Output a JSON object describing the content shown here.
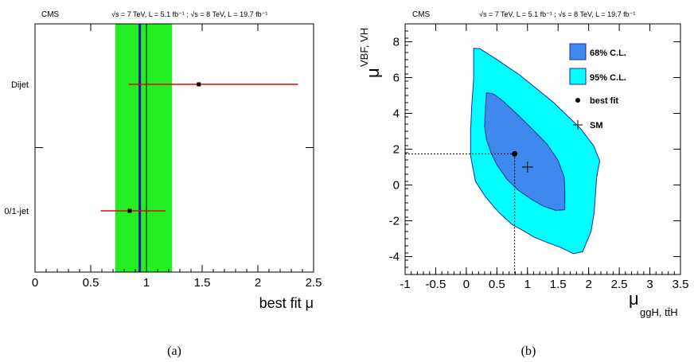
{
  "panel_a": {
    "header_left": "CMS",
    "header_right": "√s = 7 TeV, L = 5.1 fb⁻¹ ; √s = 8 TeV, L = 19.7 fb⁻¹",
    "caption": "(a)"
  },
  "panel_b": {
    "header_left": "CMS",
    "header_right": "√s = 7 TeV, L = 5.1 fb⁻¹ ; √s = 8 TeV, L = 19.7 fb⁻¹",
    "caption": "(b)"
  },
  "colors": {
    "band_green": "#22ee22",
    "combined_line": "#1a1a9e",
    "error_bar": "#ee0000",
    "cl68_fill": "#3f88ee",
    "cl95_fill": "#00ffff",
    "contour_line": "#1a2aa8"
  },
  "chart_data": [
    {
      "type": "scatter",
      "title": "",
      "xlabel": "best fit μ",
      "ylabel": "",
      "xlim": [
        0,
        2.5
      ],
      "x_ticks": [
        0,
        0.5,
        1,
        1.5,
        2,
        2.5
      ],
      "x_tick_labels": [
        "0",
        "0.5",
        "1",
        "1.5",
        "2",
        "2.5"
      ],
      "grid": false,
      "categories": [
        "Dijet",
        "0/1-jet"
      ],
      "points": [
        {
          "label": "Dijet",
          "best_fit": 1.47,
          "low": 0.84,
          "high": 2.36
        },
        {
          "label": "0/1-jet",
          "best_fit": 0.85,
          "low": 0.59,
          "high": 1.17
        }
      ],
      "combined": {
        "best_fit": 0.94,
        "low": 0.72,
        "high": 1.23
      },
      "sm_value": 1
    },
    {
      "type": "scatter",
      "title": "",
      "xlabel": "μ",
      "xlabel_sub": "ggH, tt̄H",
      "ylabel": "μ",
      "ylabel_sub": "VBF, VH",
      "xlim": [
        -1,
        3.5
      ],
      "ylim": [
        -5,
        9
      ],
      "x_ticks": [
        -1,
        -0.5,
        0,
        0.5,
        1,
        1.5,
        2,
        2.5,
        3,
        3.5
      ],
      "x_tick_labels": [
        "-1",
        "-0.5",
        "0",
        "0.5",
        "1",
        "1.5",
        "2",
        "2.5",
        "3",
        "3.5"
      ],
      "y_ticks": [
        -4,
        -2,
        0,
        2,
        4,
        6,
        8
      ],
      "y_tick_labels": [
        "-4",
        "-2",
        "0",
        "2",
        "4",
        "6",
        "8"
      ],
      "grid": false,
      "legend_position": "top-right",
      "legend": [
        "68% C.L.",
        "95% C.L.",
        "best fit",
        "SM"
      ],
      "best_fit": {
        "x": 0.79,
        "y": 1.74
      },
      "sm": {
        "x": 1,
        "y": 1
      },
      "contour_95": [
        [
          0.12,
          7.63
        ],
        [
          0.22,
          7.62
        ],
        [
          0.45,
          7.12
        ],
        [
          0.87,
          6.15
        ],
        [
          1.43,
          4.6
        ],
        [
          1.86,
          3.18
        ],
        [
          2.08,
          2.2
        ],
        [
          2.18,
          1.35
        ],
        [
          2.13,
          0.44
        ],
        [
          2.11,
          -0.53
        ],
        [
          2.09,
          -1.53
        ],
        [
          2.04,
          -2.59
        ],
        [
          1.9,
          -3.73
        ],
        [
          1.75,
          -3.84
        ],
        [
          1.55,
          -3.5
        ],
        [
          1.29,
          -3.17
        ],
        [
          1.1,
          -2.9
        ],
        [
          0.94,
          -2.57
        ],
        [
          0.75,
          -2.22
        ],
        [
          0.53,
          -1.53
        ],
        [
          0.32,
          -0.69
        ],
        [
          0.15,
          0.2
        ],
        [
          0.07,
          1.63
        ],
        [
          0.07,
          3.05
        ],
        [
          0.09,
          4.46
        ],
        [
          0.12,
          5.89
        ],
        [
          0.12,
          7.63
        ]
      ],
      "contour_68": [
        [
          0.33,
          5.15
        ],
        [
          0.44,
          5.09
        ],
        [
          0.58,
          4.75
        ],
        [
          0.83,
          3.96
        ],
        [
          1.08,
          3.12
        ],
        [
          1.32,
          2.28
        ],
        [
          1.5,
          1.37
        ],
        [
          1.6,
          0.44
        ],
        [
          1.61,
          -0.41
        ],
        [
          1.61,
          -1.38
        ],
        [
          1.46,
          -1.42
        ],
        [
          1.26,
          -1.18
        ],
        [
          1.06,
          -0.79
        ],
        [
          0.85,
          -0.29
        ],
        [
          0.67,
          0.3
        ],
        [
          0.51,
          1.07
        ],
        [
          0.41,
          1.74
        ],
        [
          0.33,
          2.54
        ],
        [
          0.3,
          3.25
        ],
        [
          0.31,
          4.16
        ],
        [
          0.33,
          5.15
        ]
      ]
    }
  ]
}
